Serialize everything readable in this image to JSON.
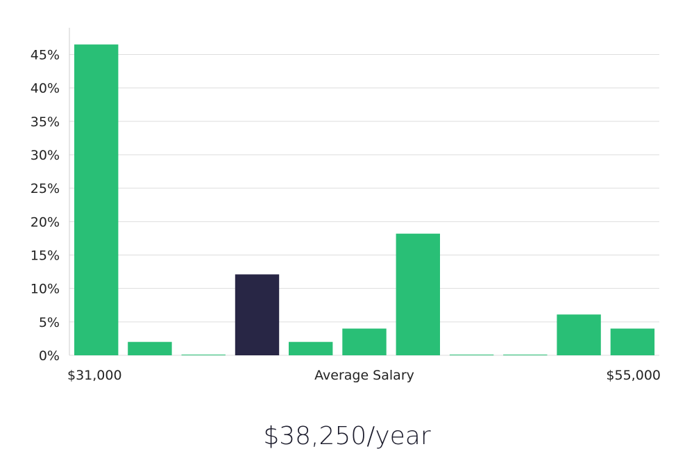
{
  "chart_data": {
    "type": "bar",
    "bins": 11,
    "values": [
      46.5,
      2.0,
      0.1,
      12.1,
      2.0,
      4.0,
      18.2,
      0.1,
      0.1,
      6.1,
      4.0
    ],
    "highlight_index": 3,
    "ylim": [
      0,
      49
    ],
    "yticks": [
      0,
      5,
      10,
      15,
      20,
      25,
      30,
      35,
      40,
      45
    ],
    "ytick_suffix": "%",
    "grid": true,
    "x_min_label": "$31,000",
    "x_max_label": "$55,000",
    "xlabel": "Average Salary",
    "colors": {
      "bar": "#29bf76",
      "highlight": "#282645",
      "grid": "#dddddd",
      "axis": "#cccccc"
    }
  },
  "salary_display": "$38,250/year"
}
